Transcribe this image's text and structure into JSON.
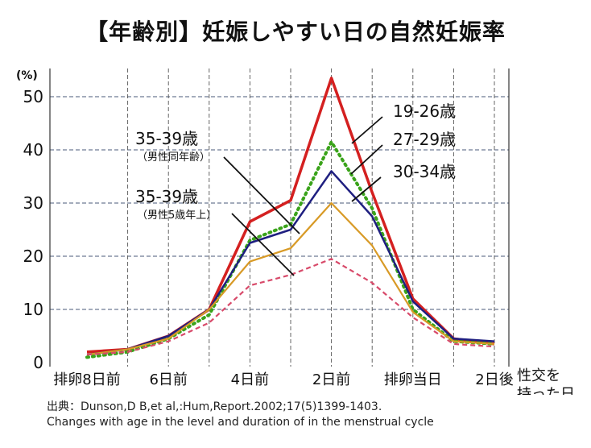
{
  "title": "【年齢別】妊娠しやすい日の自然妊娠率",
  "source": "出典：Dunson,D B,et al,:Hum,Report.2002;17(5)1399-1403.",
  "citation": "Changes with age in the level and duration of in the menstrual cycle",
  "chart_data": {
    "type": "line",
    "ylabel": "(%)",
    "xlabel": [
      "性交を",
      "持った日"
    ],
    "ylim": [
      0,
      54
    ],
    "yticks": [
      0,
      10,
      20,
      30,
      40,
      50
    ],
    "x": [
      -8,
      -7,
      -6,
      -5,
      -4,
      -3,
      -2,
      -1,
      0,
      1,
      2
    ],
    "xtick_values": [
      -8,
      -6,
      -4,
      -2,
      0,
      2
    ],
    "xtick_labels": [
      "排卵8日前",
      "6日前",
      "4日前",
      "2日前",
      "排卵当日",
      "2日後"
    ],
    "vgrid_at": [
      -7,
      -6,
      -5,
      -4,
      -3,
      -2,
      -1,
      0,
      1,
      2
    ],
    "grid": true,
    "series": [
      {
        "name": "19-26歳",
        "color": "#d42020",
        "style": "solid",
        "width": 3.5,
        "values": [
          2,
          2.5,
          5,
          10,
          26.5,
          30.5,
          53.5,
          32,
          12,
          4.5,
          3.5
        ]
      },
      {
        "name": "27-29歳",
        "color": "#3aa31a",
        "style": "dotted",
        "width": 4,
        "values": [
          1,
          2,
          4.5,
          9,
          23,
          26,
          41.5,
          29,
          10,
          4,
          3.5
        ]
      },
      {
        "name": "30-34歳",
        "color": "#1f1f80",
        "style": "solid",
        "width": 2.5,
        "values": [
          1.5,
          2.5,
          5,
          10,
          22.5,
          25,
          36,
          27.5,
          11.5,
          4.5,
          4
        ]
      },
      {
        "name": "35-39歳",
        "color": "#d89a26",
        "style": "solid",
        "width": 2.2,
        "values": [
          1.5,
          2.5,
          4.5,
          10,
          19,
          21.5,
          30,
          22,
          9.5,
          4,
          3.5
        ]
      },
      {
        "name": "35-39歳",
        "color": "#d84a6a",
        "style": "dashed",
        "width": 2.2,
        "values": [
          1.5,
          2,
          4,
          7.5,
          14.5,
          16.5,
          19.5,
          15,
          8.5,
          3.5,
          3
        ]
      }
    ],
    "annotations": [
      {
        "text": "19-26歳",
        "sub": ""
      },
      {
        "text": "27-29歳",
        "sub": ""
      },
      {
        "text": "30-34歳",
        "sub": ""
      },
      {
        "text": "35-39歳",
        "sub": "（男性同年齢）"
      },
      {
        "text": "35-39歳",
        "sub": "（男性5歳年上）"
      }
    ]
  }
}
